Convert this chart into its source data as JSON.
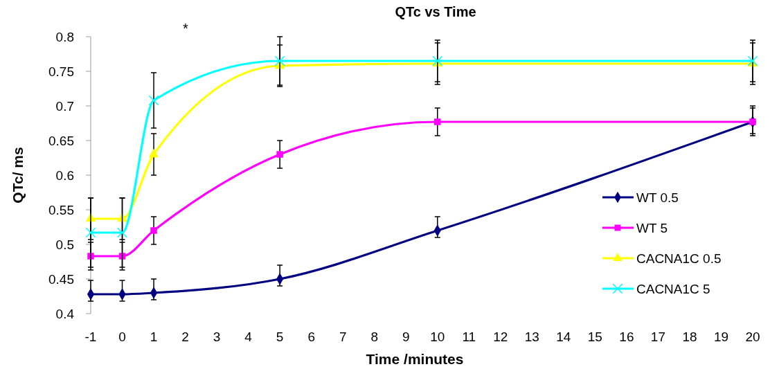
{
  "chart_data": {
    "type": "line",
    "title": "QTc vs Time",
    "xlabel": "Time /minutes",
    "ylabel": "QTc/ ms",
    "annotations": [
      "*"
    ],
    "x": [
      -1,
      0,
      1,
      5,
      10,
      20
    ],
    "xlim": [
      -1,
      20
    ],
    "xticks": [
      -1,
      0,
      1,
      2,
      3,
      4,
      5,
      6,
      7,
      8,
      9,
      10,
      11,
      12,
      13,
      14,
      15,
      16,
      17,
      18,
      19,
      20
    ],
    "ylim": [
      0.4,
      0.8
    ],
    "yticks": [
      0.4,
      0.45,
      0.5,
      0.55,
      0.6,
      0.65,
      0.7,
      0.75,
      0.8
    ],
    "grid": false,
    "legend": "right",
    "line_style": "solid",
    "series": [
      {
        "name": "WT 0.5",
        "color": "#000080",
        "marker": "diamond",
        "values": [
          0.428,
          0.428,
          0.43,
          0.45,
          0.52,
          0.677
        ],
        "errors": [
          [
            0.418,
            0.448
          ],
          [
            0.418,
            0.448
          ],
          [
            0.42,
            0.45
          ],
          [
            0.44,
            0.47
          ],
          [
            0.51,
            0.54
          ],
          [
            0.66,
            0.7
          ]
        ]
      },
      {
        "name": "WT 5",
        "color": "#ff00ff",
        "marker": "square",
        "values": [
          0.483,
          0.483,
          0.52,
          0.63,
          0.677,
          0.677
        ],
        "errors": [
          0.02,
          0.02,
          0.02,
          0.02,
          0.02,
          0.02
        ]
      },
      {
        "name": "CACNA1C 0.5",
        "color": "#ffff00",
        "marker": "triangle",
        "values": [
          0.537,
          0.537,
          0.63,
          0.758,
          0.761,
          0.761
        ],
        "errors": [
          0.03,
          0.03,
          0.03,
          0.03,
          0.03,
          0.03
        ]
      },
      {
        "name": "CACNA1C 5",
        "color": "#00ffff",
        "marker": "cross",
        "values": [
          0.517,
          0.517,
          0.708,
          0.765,
          0.765,
          0.765
        ],
        "errors": [
          0.05,
          0.05,
          0.04,
          0.035,
          0.03,
          0.03
        ]
      }
    ]
  }
}
